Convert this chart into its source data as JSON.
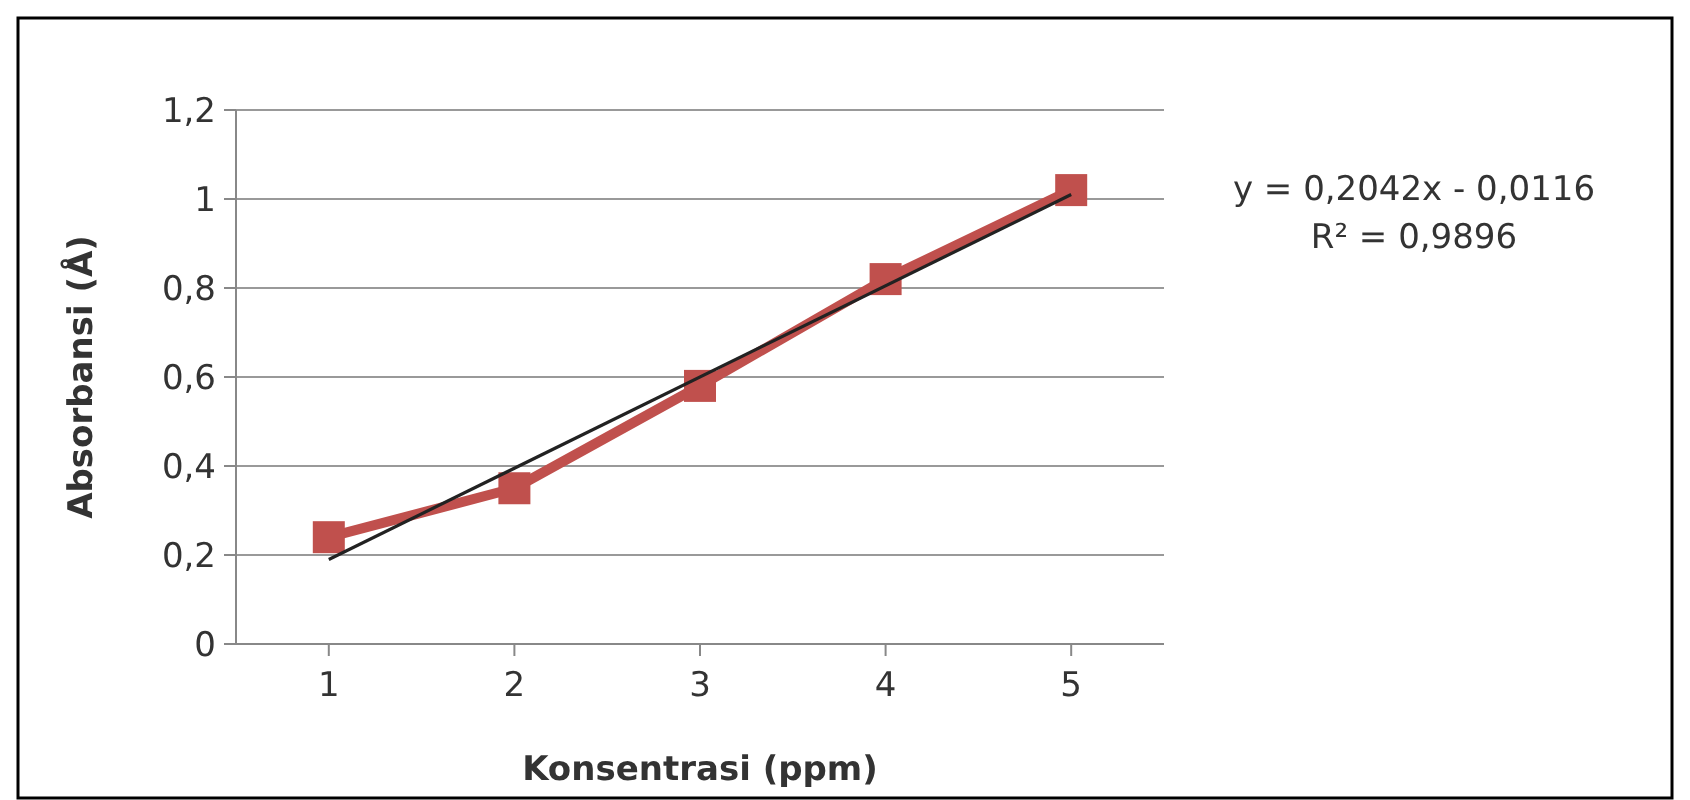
{
  "chart_data": {
    "type": "line",
    "xlabel": "Konsentrasi (ppm)",
    "ylabel": "Absorbansi (Å)",
    "x": [
      1,
      2,
      3,
      4,
      5
    ],
    "series": [
      {
        "color": "#c0504d",
        "values": [
          0.24,
          0.35,
          0.58,
          0.82,
          1.02
        ],
        "marker": "square"
      },
      {
        "type": "line",
        "color": "#222222",
        "x": [
          1,
          5
        ],
        "values": [
          0.19,
          1.01
        ],
        "marker": "none"
      }
    ],
    "xlim": [
      0.5,
      5.5
    ],
    "xticks": [
      1,
      2,
      3,
      4,
      5
    ],
    "ylim": [
      0,
      1.2
    ],
    "yticks": [
      {
        "value": 0,
        "label": "0"
      },
      {
        "value": 0.2,
        "label": "0,2"
      },
      {
        "value": 0.4,
        "label": "0,4"
      },
      {
        "value": 0.6,
        "label": "0,6"
      },
      {
        "value": 0.8,
        "label": "0,8"
      },
      {
        "value": 1,
        "label": "1"
      },
      {
        "value": 1.2,
        "label": "1,2"
      }
    ],
    "grid": "y",
    "annotations": [
      "y = 0,2042x - 0,0116",
      "R² = 0,9896"
    ]
  }
}
